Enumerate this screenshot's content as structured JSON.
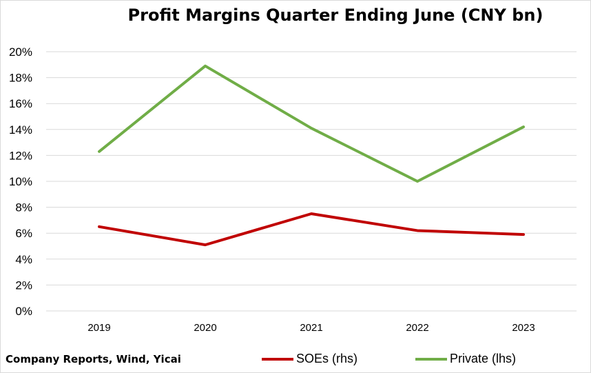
{
  "chart_data": {
    "type": "line",
    "title": "Profit Margins Quarter Ending June (CNY bn)",
    "source": "Company Reports, Wind, Yicai",
    "categories": [
      "2019",
      "2020",
      "2021",
      "2022",
      "2023"
    ],
    "y_ticks": [
      "0%",
      "2%",
      "4%",
      "6%",
      "8%",
      "10%",
      "12%",
      "14%",
      "16%",
      "18%",
      "20%"
    ],
    "ylim": [
      0,
      20
    ],
    "grid": true,
    "legend_position": "bottom",
    "series": [
      {
        "name": "SOEs (rhs)",
        "color": "#c00000",
        "values": [
          6.5,
          5.1,
          7.5,
          6.2,
          5.9
        ]
      },
      {
        "name": "Private (lhs)",
        "color": "#70ad47",
        "values": [
          12.3,
          18.9,
          14.1,
          10.0,
          14.2
        ]
      }
    ]
  }
}
